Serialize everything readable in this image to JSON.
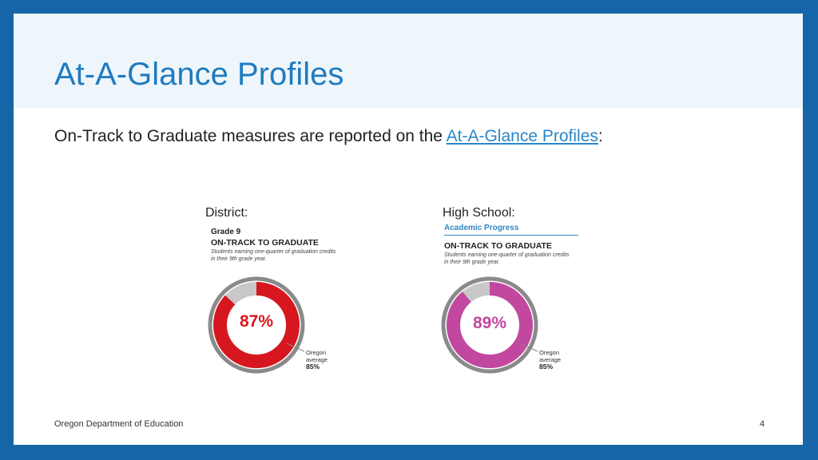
{
  "slide": {
    "title": "At-A-Glance Profiles",
    "intro_prefix": "On-Track to Graduate measures are reported on the ",
    "intro_link": "At-A-Glance Profiles",
    "intro_suffix": ":"
  },
  "district": {
    "label": "District:",
    "grade": "Grade 9",
    "heading": "ON-TRACK TO GRADUATE",
    "description": "Students earning one-quarter of graduation credits in their 9th grade year.",
    "value_text": "87%",
    "value": 87,
    "oregon_line1": "Oregon",
    "oregon_line2": "average",
    "oregon_avg": "85%",
    "color": "#d7171f"
  },
  "high_school": {
    "label": "High School:",
    "section": "Academic Progress",
    "heading": "ON-TRACK TO GRADUATE",
    "description": "Students earning one-quarter of graduation credits in their 9th grade year.",
    "value_text": "89%",
    "value": 89,
    "oregon_line1": "Oregon",
    "oregon_line2": "average",
    "oregon_avg": "85%",
    "color": "#c2479f"
  },
  "footer": {
    "organization": "Oregon Department of Education",
    "page_number": "4"
  }
}
